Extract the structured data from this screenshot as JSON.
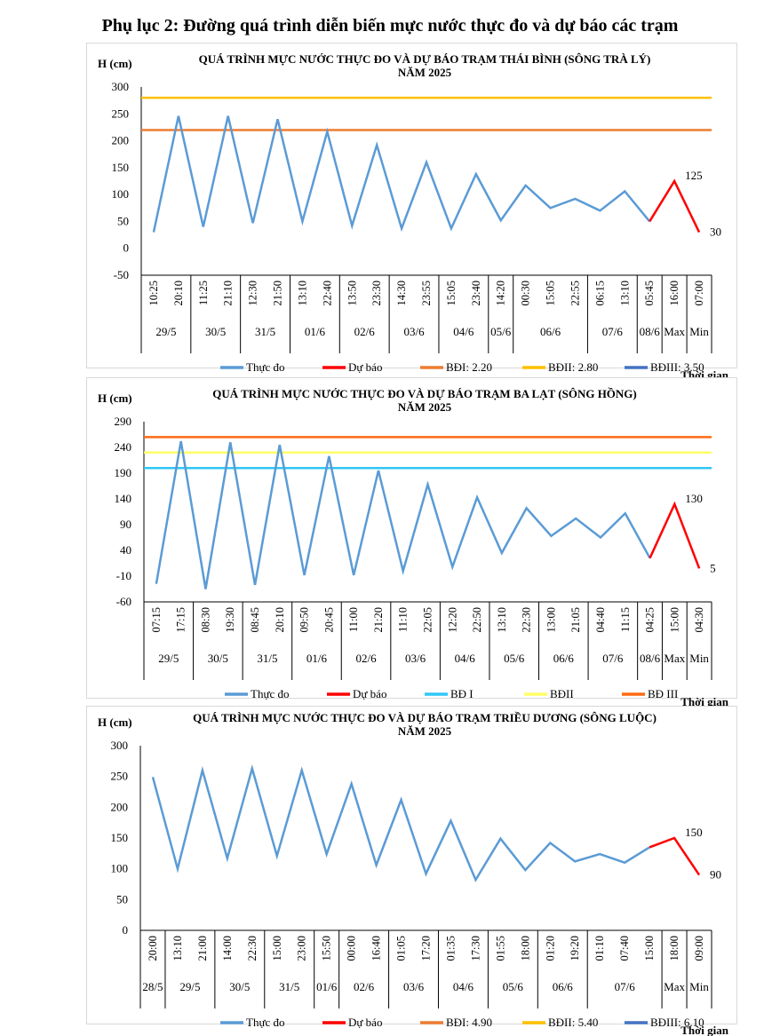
{
  "page_title": "Phụ lục 2: Đường quá trình diễn biến mực nước thực đo và dự báo các trạm",
  "colors": {
    "measured": "#5b9bd5",
    "forecast": "#ff0000"
  },
  "chart_data": [
    {
      "type": "line",
      "title_line1": "QUÁ TRÌNH MỰC NƯỚC THỰC ĐO VÀ DỰ BÁO TRẠM THÁI BÌNH (SÔNG TRÀ LÝ)",
      "title_line2": "NĂM 2025",
      "ylabel": "H (cm)",
      "xlabel": "Thời gian",
      "ylim": [
        -50,
        300
      ],
      "yticks": [
        -50,
        0,
        50,
        100,
        150,
        200,
        250,
        300
      ],
      "grid": false,
      "legend_position": "bottom",
      "x": [
        "10:25",
        "20:10",
        "11:25",
        "21:10",
        "12:30",
        "21:50",
        "13:10",
        "22:40",
        "13:50",
        "23:30",
        "14:30",
        "23:55",
        "15:05",
        "23:40",
        "14:20",
        "00:30",
        "15:05",
        "22:55",
        "06:15",
        "13:10",
        "05:45",
        "16:00",
        "07:00"
      ],
      "date_groups": [
        {
          "label": "29/5",
          "span": 2
        },
        {
          "label": "30/5",
          "span": 2
        },
        {
          "label": "31/5",
          "span": 2
        },
        {
          "label": "01/6",
          "span": 2
        },
        {
          "label": "02/6",
          "span": 2
        },
        {
          "label": "03/6",
          "span": 2
        },
        {
          "label": "04/6",
          "span": 2
        },
        {
          "label": "05/6",
          "span": 1
        },
        {
          "label": "06/6",
          "span": 3
        },
        {
          "label": "07/6",
          "span": 2
        },
        {
          "label": "08/6",
          "span": 1
        },
        {
          "label": "Max",
          "span": 1
        },
        {
          "label": "Min",
          "span": 1
        }
      ],
      "series": [
        {
          "name": "Thực đo",
          "color": "#5b9bd5",
          "values": [
            30,
            246,
            40,
            246,
            47,
            240,
            50,
            217,
            42,
            192,
            37,
            160,
            37,
            138,
            52,
            117,
            75,
            92,
            70,
            106,
            50,
            null,
            null
          ]
        },
        {
          "name": "Dự báo",
          "color": "#ff0000",
          "values": [
            null,
            null,
            null,
            null,
            null,
            null,
            null,
            null,
            null,
            null,
            null,
            null,
            null,
            null,
            null,
            null,
            null,
            null,
            null,
            null,
            50,
            125,
            30
          ]
        }
      ],
      "thresholds": [
        {
          "name": "BĐI: 2.20",
          "value": 220,
          "color": "#ed7d31"
        },
        {
          "name": "BĐII: 2.80",
          "value": 280,
          "color": "#ffc000"
        },
        {
          "name": "BĐIII: 3.50",
          "value": 350,
          "color": "#4472c4"
        }
      ],
      "data_labels": {
        "max": "125",
        "min": "30"
      }
    },
    {
      "type": "line",
      "title_line1": "QUÁ TRÌNH MỰC NƯỚC THỰC ĐO VÀ DỰ BÁO TRẠM BA LẠT (SÔNG HỒNG)",
      "title_line2": "NĂM 2025",
      "ylabel": "H (cm)",
      "xlabel": "Thời gian",
      "ylim": [
        -60,
        290
      ],
      "yticks": [
        -60,
        -10,
        40,
        90,
        140,
        190,
        240,
        290
      ],
      "grid": false,
      "legend_position": "bottom",
      "x": [
        "07:15",
        "17:15",
        "08:30",
        "19:30",
        "08:45",
        "20:10",
        "09:50",
        "20:45",
        "11:00",
        "21:20",
        "11:10",
        "22:05",
        "12:20",
        "22:50",
        "13:10",
        "22:30",
        "13:00",
        "21:05",
        "04:40",
        "11:15",
        "04:25",
        "15:00",
        "04:30"
      ],
      "date_groups": [
        {
          "label": "29/5",
          "span": 2
        },
        {
          "label": "30/5",
          "span": 2
        },
        {
          "label": "31/5",
          "span": 2
        },
        {
          "label": "01/6",
          "span": 2
        },
        {
          "label": "02/6",
          "span": 2
        },
        {
          "label": "03/6",
          "span": 2
        },
        {
          "label": "04/6",
          "span": 2
        },
        {
          "label": "05/6",
          "span": 2
        },
        {
          "label": "06/6",
          "span": 2
        },
        {
          "label": "07/6",
          "span": 2
        },
        {
          "label": "08/6",
          "span": 1
        },
        {
          "label": "Max",
          "span": 1
        },
        {
          "label": "Min",
          "span": 1
        }
      ],
      "series": [
        {
          "name": "Thực đo",
          "color": "#5b9bd5",
          "values": [
            -25,
            252,
            -35,
            250,
            -27,
            245,
            -8,
            223,
            -8,
            195,
            0,
            168,
            8,
            143,
            35,
            122,
            68,
            102,
            65,
            112,
            25,
            null,
            null
          ]
        },
        {
          "name": "Dự báo",
          "color": "#ff0000",
          "values": [
            null,
            null,
            null,
            null,
            null,
            null,
            null,
            null,
            null,
            null,
            null,
            null,
            null,
            null,
            null,
            null,
            null,
            null,
            null,
            null,
            25,
            130,
            5
          ]
        }
      ],
      "thresholds": [
        {
          "name": "BĐ I",
          "value": 200,
          "color": "#2fc7f7"
        },
        {
          "name": "BĐII",
          "value": 230,
          "color": "#ffff66"
        },
        {
          "name": "BĐ III",
          "value": 260,
          "color": "#ff6a13"
        }
      ],
      "data_labels": {
        "max": "130",
        "min": "5"
      }
    },
    {
      "type": "line",
      "title_line1": "QUÁ TRÌNH MỰC NƯỚC THỰC ĐO VÀ DỰ BÁO TRẠM TRIỀU DƯƠNG  (SÔNG LUỘC)",
      "title_line2": "NĂM 2025",
      "ylabel": "H (cm)",
      "xlabel": "Thời gian",
      "ylim": [
        0,
        300
      ],
      "yticks": [
        0,
        50,
        100,
        150,
        200,
        250,
        300
      ],
      "grid": false,
      "legend_position": "bottom",
      "x": [
        "20:00",
        "13:10",
        "21:00",
        "14:00",
        "22:30",
        "15:00",
        "23:00",
        "15:50",
        "00:00",
        "16:40",
        "01:05",
        "17:20",
        "01:35",
        "17:30",
        "01:55",
        "18:00",
        "01:20",
        "19:20",
        "01:10",
        "07:40",
        "15:00",
        "18:00",
        "09:00"
      ],
      "date_groups": [
        {
          "label": "28/5",
          "span": 1
        },
        {
          "label": "29/5",
          "span": 2
        },
        {
          "label": "30/5",
          "span": 2
        },
        {
          "label": "31/5",
          "span": 2
        },
        {
          "label": "01/6",
          "span": 1
        },
        {
          "label": "02/6",
          "span": 2
        },
        {
          "label": "03/6",
          "span": 2
        },
        {
          "label": "04/6",
          "span": 2
        },
        {
          "label": "05/6",
          "span": 2
        },
        {
          "label": "06/6",
          "span": 2
        },
        {
          "label": "07/6",
          "span": 3
        },
        {
          "label": "Max",
          "span": 1
        },
        {
          "label": "Min",
          "span": 1
        }
      ],
      "series": [
        {
          "name": "Thực đo",
          "color": "#5b9bd5",
          "values": [
            249,
            100,
            260,
            117,
            263,
            121,
            260,
            124,
            238,
            106,
            212,
            92,
            178,
            82,
            149,
            98,
            142,
            112,
            124,
            110,
            135,
            null,
            null
          ]
        },
        {
          "name": "Dự báo",
          "color": "#ff0000",
          "values": [
            null,
            null,
            null,
            null,
            null,
            null,
            null,
            null,
            null,
            null,
            null,
            null,
            null,
            null,
            null,
            null,
            null,
            null,
            null,
            null,
            135,
            150,
            90
          ]
        }
      ],
      "thresholds": [
        {
          "name": "BĐI: 4.90",
          "value": 490,
          "color": "#ed7d31"
        },
        {
          "name": "BĐII: 5.40",
          "value": 540,
          "color": "#ffc000"
        },
        {
          "name": "BĐIII: 6.10",
          "value": 610,
          "color": "#4472c4"
        }
      ],
      "data_labels": {
        "max": "150",
        "min": "90"
      }
    }
  ]
}
